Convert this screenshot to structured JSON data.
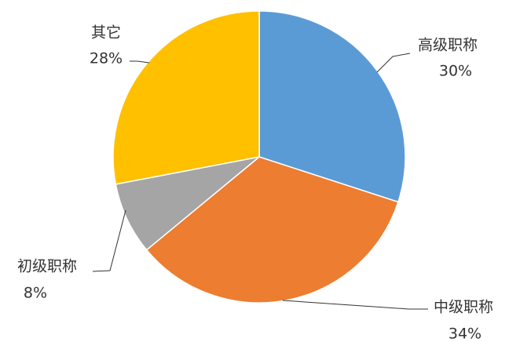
{
  "chart_data": {
    "type": "pie",
    "categories": [
      "高级职称",
      "中级职称",
      "初级职称",
      "其它"
    ],
    "values": [
      30,
      34,
      8,
      28
    ],
    "value_labels": [
      "30%",
      "34%",
      "8%",
      "28%"
    ],
    "colors": [
      "#5b9bd5",
      "#ed7d31",
      "#a5a5a5",
      "#ffc000"
    ]
  }
}
